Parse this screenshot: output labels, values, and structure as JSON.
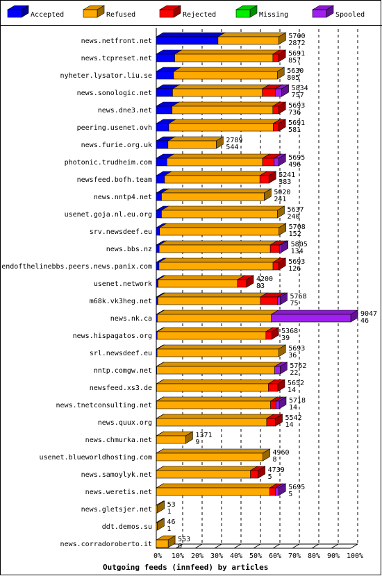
{
  "chart_data": {
    "type": "bar",
    "orientation": "horizontal",
    "stacked": true,
    "xlabel": "Outgoing feeds (innfeed) by articles",
    "x_ticks": [
      "0%",
      "10%",
      "20%",
      "30%",
      "40%",
      "50%",
      "60%",
      "70%",
      "80%",
      "90%",
      "100%"
    ],
    "xlim": [
      0,
      100
    ],
    "max_total": 9047,
    "grid": true,
    "legend_position": "top",
    "series": [
      {
        "name": "Accepted",
        "color": "#0000ff"
      },
      {
        "name": "Refused",
        "color": "#ffaa00"
      },
      {
        "name": "Rejected",
        "color": "#ff0000"
      },
      {
        "name": "Missing",
        "color": "#00ee00"
      },
      {
        "name": "Spooled",
        "color": "#a020f0"
      }
    ],
    "categories": [
      "news.netfront.net",
      "news.tcpreset.net",
      "nyheter.lysator.liu.se",
      "news.sonologic.net",
      "news.dne3.net",
      "peering.usenet.ovh",
      "news.furie.org.uk",
      "photonic.trudheim.com",
      "newsfeed.bofh.team",
      "news.nntp4.net",
      "usenet.goja.nl.eu.org",
      "srv.newsdeef.eu",
      "news.bbs.nz",
      "endofthelinebbs.peers.news.panix.com",
      "usenet.network",
      "m68k.vk3heg.net",
      "news.nk.ca",
      "news.hispagatos.org",
      "srl.newsdeef.eu",
      "nntp.comgw.net",
      "newsfeed.xs3.de",
      "news.tnetconsulting.net",
      "news.quux.org",
      "news.chmurka.net",
      "usenet.blueworldhosting.com",
      "news.samoylyk.net",
      "news.weretis.net",
      "news.gletsjer.net",
      "ddt.demos.su",
      "news.corradoroberto.it"
    ],
    "totals": [
      5700,
      5691,
      5630,
      5834,
      5693,
      5691,
      2789,
      5695,
      5241,
      5020,
      5637,
      5708,
      5805,
      5693,
      4200,
      5768,
      9047,
      5368,
      5693,
      5762,
      5652,
      5718,
      5542,
      1371,
      4960,
      4739,
      5695,
      53,
      46,
      553
    ],
    "accepted": [
      2872,
      857,
      805,
      757,
      736,
      581,
      544,
      496,
      383,
      241,
      240,
      152,
      134,
      126,
      83,
      75,
      46,
      39,
      36,
      22,
      14,
      14,
      14,
      9,
      8,
      5,
      5,
      1,
      1,
      0
    ],
    "refused": [
      2828,
      4570,
      4825,
      4177,
      4687,
      4860,
      2245,
      4449,
      4438,
      4779,
      5397,
      5556,
      5171,
      5305,
      3697,
      4768,
      5308,
      5061,
      5657,
      5490,
      5198,
      5304,
      5123,
      1362,
      4952,
      4378,
      5278,
      52,
      45,
      553
    ],
    "rejected": [
      0,
      264,
      0,
      600,
      270,
      250,
      0,
      540,
      420,
      0,
      0,
      0,
      420,
      262,
      420,
      800,
      0,
      268,
      0,
      0,
      440,
      250,
      405,
      0,
      0,
      356,
      262,
      0,
      0,
      0
    ],
    "missing": [
      0,
      0,
      0,
      0,
      0,
      0,
      0,
      0,
      0,
      0,
      0,
      0,
      0,
      0,
      0,
      0,
      0,
      0,
      0,
      0,
      0,
      0,
      0,
      0,
      0,
      0,
      0,
      0,
      0,
      0
    ],
    "spooled": [
      0,
      0,
      0,
      300,
      0,
      0,
      0,
      210,
      0,
      0,
      0,
      0,
      80,
      0,
      0,
      125,
      3693,
      0,
      0,
      250,
      0,
      150,
      0,
      0,
      0,
      0,
      150,
      0,
      0,
      0
    ]
  }
}
